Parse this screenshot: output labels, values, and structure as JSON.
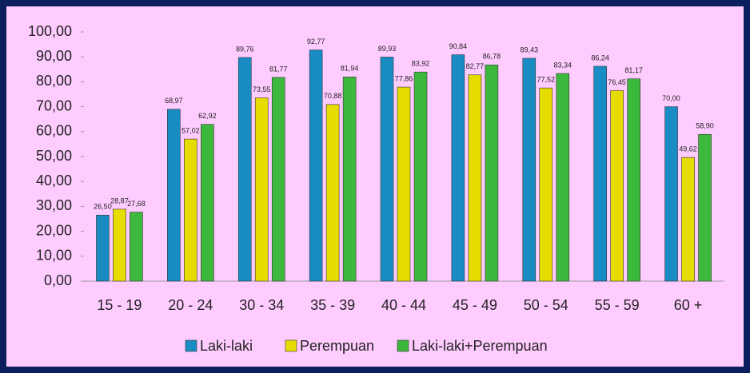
{
  "chart_data": {
    "type": "bar",
    "categories": [
      "15 - 19",
      "20 - 24",
      "30 - 34",
      "35 - 39",
      "40 - 44",
      "45 - 49",
      "50 - 54",
      "55 - 59",
      "60 +"
    ],
    "series": [
      {
        "name": "Laki-laki",
        "color": "#1a8cc4",
        "values": [
          26.5,
          68.97,
          89.76,
          92.77,
          89.93,
          90.84,
          89.43,
          86.24,
          70.0
        ],
        "value_labels": [
          "26,50",
          "68,97",
          "89,76",
          "92,77",
          "89,93",
          "90,84",
          "89,43",
          "86,24",
          "70,00"
        ]
      },
      {
        "name": "Perempuan",
        "color": "#e6dc00",
        "values": [
          28.87,
          57.02,
          73.55,
          70.88,
          77.86,
          82.77,
          77.52,
          76.45,
          49.62
        ],
        "value_labels": [
          "28,87",
          "57,02",
          "73,55",
          "70,88",
          "77,86",
          "82,77",
          "77,52",
          "76,45",
          "49,62"
        ]
      },
      {
        "name": "Laki-laki+Perempuan",
        "color": "#3cb83c",
        "values": [
          27.68,
          62.92,
          81.77,
          81.94,
          83.92,
          86.78,
          83.34,
          81.17,
          58.9
        ],
        "value_labels": [
          "27,68",
          "62,92",
          "81,77",
          "81,94",
          "83,92",
          "86,78",
          "83,34",
          "81,17",
          "58,90"
        ]
      }
    ],
    "ylim": [
      0,
      100
    ],
    "yticks": [
      {
        "value": 0,
        "label": "0,00"
      },
      {
        "value": 10,
        "label": "10,00"
      },
      {
        "value": 20,
        "label": "20,00"
      },
      {
        "value": 30,
        "label": "30,00"
      },
      {
        "value": 40,
        "label": "40,00"
      },
      {
        "value": 50,
        "label": "50,00"
      },
      {
        "value": 60,
        "label": "60,00"
      },
      {
        "value": 70,
        "label": "70,00"
      },
      {
        "value": 80,
        "label": "80,00"
      },
      {
        "value": 90,
        "label": "90,00"
      },
      {
        "value": 100,
        "label": "100,00"
      }
    ],
    "grid": false,
    "legend": "bottom"
  }
}
